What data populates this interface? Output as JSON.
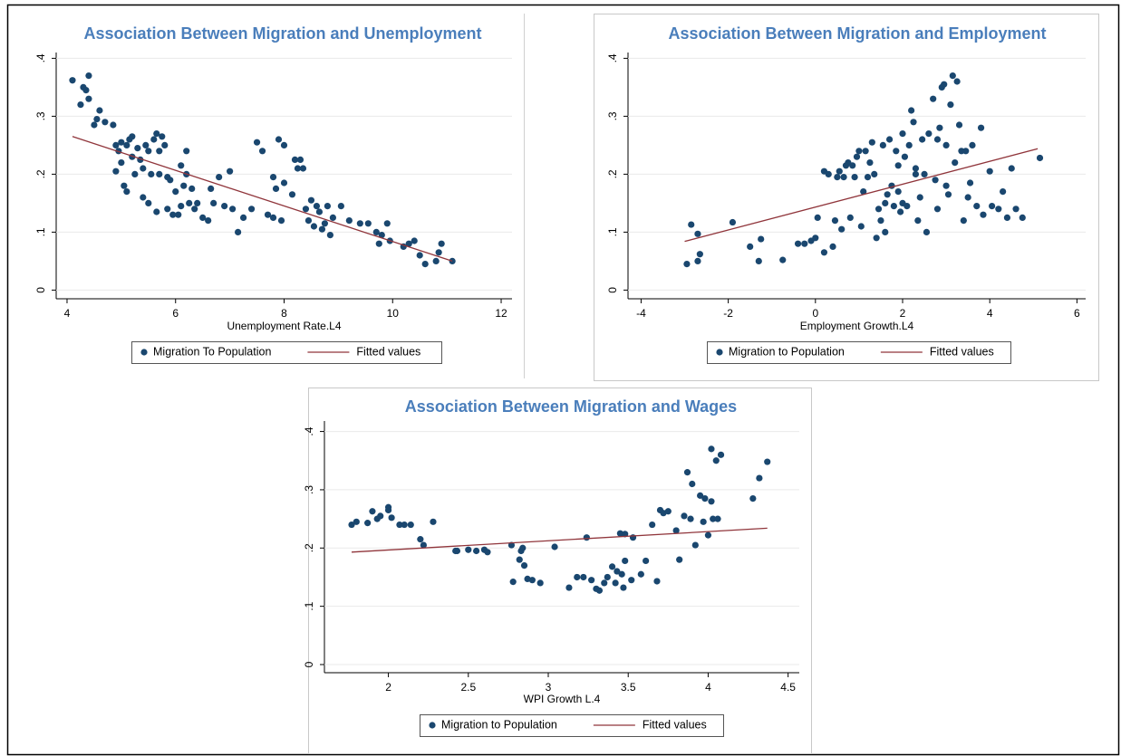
{
  "chart_data": [
    {
      "type": "scatter",
      "title": "Association Between Migration and Unemployment",
      "x_label": "Unemployment Rate.L4",
      "xlim": [
        3.8,
        12.2
      ],
      "ylim": [
        -0.015,
        0.41
      ],
      "xticks": [
        4,
        6,
        8,
        10,
        12
      ],
      "yticks": [
        0,
        {
          "value": 0.1,
          "label": ".1"
        },
        {
          "value": 0.2,
          "label": ".2"
        },
        {
          "value": 0.3,
          "label": ".3"
        },
        {
          "value": 0.4,
          "label": ".4"
        }
      ],
      "grid": true,
      "series": [
        {
          "name": "Migration To Population",
          "mode": "markers",
          "color": "#1a476f",
          "x": [
            4.1,
            4.25,
            4.3,
            4.35,
            4.4,
            4.4,
            4.5,
            4.55,
            4.6,
            4.7,
            4.85,
            4.9,
            4.9,
            4.95,
            5.0,
            5.0,
            5.05,
            5.1,
            5.1,
            5.15,
            5.2,
            5.2,
            5.25,
            5.3,
            5.35,
            5.4,
            5.4,
            5.45,
            5.5,
            5.5,
            5.55,
            5.6,
            5.65,
            5.65,
            5.7,
            5.7,
            5.75,
            5.8,
            5.85,
            5.85,
            5.9,
            5.95,
            6.0,
            6.05,
            6.1,
            6.1,
            6.15,
            6.2,
            6.2,
            6.25,
            6.3,
            6.35,
            6.4,
            6.5,
            6.6,
            6.65,
            6.7,
            6.8,
            6.9,
            7.0,
            7.05,
            7.15,
            7.25,
            7.4,
            7.5,
            7.6,
            7.7,
            7.8,
            7.8,
            7.85,
            7.9,
            7.95,
            8.0,
            8.0,
            8.15,
            8.2,
            8.25,
            8.3,
            8.35,
            8.4,
            8.45,
            8.5,
            8.55,
            8.6,
            8.65,
            8.7,
            8.75,
            8.8,
            8.85,
            8.9,
            9.05,
            9.2,
            9.4,
            9.55,
            9.7,
            9.75,
            9.8,
            9.9,
            9.95,
            10.2,
            10.3,
            10.4,
            10.5,
            10.6,
            10.8,
            10.85,
            10.9,
            11.1
          ],
          "values": [
            0.362,
            0.32,
            0.35,
            0.345,
            0.37,
            0.33,
            0.285,
            0.295,
            0.31,
            0.29,
            0.285,
            0.25,
            0.205,
            0.24,
            0.22,
            0.255,
            0.18,
            0.17,
            0.25,
            0.26,
            0.265,
            0.23,
            0.2,
            0.245,
            0.225,
            0.21,
            0.16,
            0.25,
            0.24,
            0.15,
            0.2,
            0.26,
            0.27,
            0.135,
            0.2,
            0.24,
            0.265,
            0.25,
            0.195,
            0.14,
            0.19,
            0.13,
            0.17,
            0.13,
            0.215,
            0.145,
            0.18,
            0.24,
            0.2,
            0.15,
            0.175,
            0.14,
            0.15,
            0.125,
            0.12,
            0.175,
            0.15,
            0.195,
            0.145,
            0.205,
            0.14,
            0.1,
            0.125,
            0.14,
            0.255,
            0.24,
            0.13,
            0.195,
            0.125,
            0.175,
            0.26,
            0.12,
            0.25,
            0.185,
            0.165,
            0.225,
            0.21,
            0.225,
            0.21,
            0.14,
            0.12,
            0.155,
            0.11,
            0.145,
            0.135,
            0.105,
            0.115,
            0.145,
            0.095,
            0.125,
            0.145,
            0.12,
            0.115,
            0.115,
            0.1,
            0.08,
            0.095,
            0.115,
            0.085,
            0.075,
            0.08,
            0.085,
            0.06,
            0.045,
            0.05,
            0.065,
            0.08,
            0.05
          ]
        },
        {
          "name": "Fitted values",
          "mode": "line",
          "color": "#90353b",
          "x": [
            4.1,
            11.1
          ],
          "values": [
            0.265,
            0.05
          ]
        }
      ]
    },
    {
      "type": "scatter",
      "title": "Association Between Migration and Employment",
      "x_label": "Employment Growth.L4",
      "xlim": [
        -4.3,
        6.2
      ],
      "ylim": [
        -0.015,
        0.41
      ],
      "xticks": [
        -4,
        -2,
        0,
        2,
        4,
        6
      ],
      "yticks": [
        0,
        {
          "value": 0.1,
          "label": ".1"
        },
        {
          "value": 0.2,
          "label": ".2"
        },
        {
          "value": 0.3,
          "label": ".3"
        },
        {
          "value": 0.4,
          "label": ".4"
        }
      ],
      "grid": true,
      "series": [
        {
          "name": "Migration to Population",
          "mode": "markers",
          "color": "#1a476f",
          "x": [
            -2.95,
            -2.85,
            -2.7,
            -2.7,
            -2.65,
            -1.9,
            -1.5,
            -1.25,
            -1.3,
            -0.75,
            -0.4,
            -0.25,
            -0.1,
            0.0,
            0.05,
            0.2,
            0.2,
            0.3,
            0.4,
            0.45,
            0.5,
            0.55,
            0.6,
            0.65,
            0.7,
            0.8,
            0.85,
            0.9,
            0.95,
            1.0,
            1.05,
            1.1,
            1.15,
            1.2,
            1.3,
            1.35,
            1.4,
            1.45,
            1.5,
            1.55,
            1.6,
            1.65,
            1.7,
            1.75,
            1.8,
            1.85,
            1.9,
            1.95,
            2.0,
            2.05,
            2.1,
            2.15,
            2.2,
            2.25,
            2.3,
            2.35,
            2.4,
            2.45,
            2.5,
            2.55,
            2.6,
            2.7,
            2.75,
            2.8,
            2.85,
            2.9,
            2.95,
            3.0,
            3.05,
            3.1,
            3.15,
            3.2,
            3.25,
            3.3,
            3.35,
            3.4,
            3.5,
            3.55,
            3.6,
            3.7,
            3.8,
            3.85,
            4.0,
            4.05,
            4.2,
            4.3,
            4.4,
            4.5,
            4.6,
            4.75,
            5.15,
            0.75,
            1.25,
            2.0,
            2.3,
            2.8,
            3.0,
            3.45,
            1.6,
            1.9
          ],
          "values": [
            0.045,
            0.113,
            0.097,
            0.05,
            0.062,
            0.117,
            0.075,
            0.088,
            0.05,
            0.052,
            0.08,
            0.08,
            0.085,
            0.09,
            0.125,
            0.065,
            0.205,
            0.2,
            0.075,
            0.12,
            0.195,
            0.205,
            0.105,
            0.195,
            0.215,
            0.125,
            0.215,
            0.195,
            0.23,
            0.24,
            0.11,
            0.17,
            0.24,
            0.195,
            0.255,
            0.2,
            0.09,
            0.14,
            0.12,
            0.25,
            0.1,
            0.165,
            0.26,
            0.18,
            0.145,
            0.24,
            0.17,
            0.135,
            0.27,
            0.23,
            0.145,
            0.25,
            0.31,
            0.29,
            0.21,
            0.12,
            0.16,
            0.26,
            0.2,
            0.1,
            0.27,
            0.33,
            0.19,
            0.26,
            0.28,
            0.35,
            0.355,
            0.25,
            0.165,
            0.32,
            0.37,
            0.22,
            0.36,
            0.285,
            0.24,
            0.12,
            0.16,
            0.185,
            0.25,
            0.145,
            0.28,
            0.13,
            0.205,
            0.145,
            0.14,
            0.17,
            0.125,
            0.21,
            0.14,
            0.125,
            0.228,
            0.22,
            0.22,
            0.15,
            0.2,
            0.14,
            0.18,
            0.24,
            0.15,
            0.215
          ]
        },
        {
          "name": "Fitted values",
          "mode": "line",
          "color": "#90353b",
          "x": [
            -3.0,
            5.1
          ],
          "values": [
            0.084,
            0.244
          ]
        }
      ]
    },
    {
      "type": "scatter",
      "title": "Association Between Migration and Wages",
      "x_label": "WPI Growth L.4",
      "xlim": [
        1.6,
        4.57
      ],
      "ylim": [
        -0.014,
        0.418
      ],
      "xticks": [
        2,
        2.5,
        3,
        3.5,
        4,
        4.5
      ],
      "yticks": [
        0,
        {
          "value": 0.1,
          "label": ".1"
        },
        {
          "value": 0.2,
          "label": ".2"
        },
        {
          "value": 0.3,
          "label": ".3"
        },
        {
          "value": 0.4,
          "label": ".4"
        }
      ],
      "grid": true,
      "series": [
        {
          "name": "Migration to Population",
          "mode": "markers",
          "color": "#1a476f",
          "x": [
            1.77,
            1.8,
            1.87,
            1.9,
            1.93,
            1.95,
            2.0,
            2.0,
            2.02,
            2.07,
            2.1,
            2.14,
            2.2,
            2.22,
            2.28,
            2.42,
            2.43,
            2.5,
            2.55,
            2.6,
            2.62,
            2.77,
            2.78,
            2.82,
            2.83,
            2.84,
            2.85,
            2.87,
            2.9,
            2.95,
            3.04,
            3.13,
            3.18,
            3.22,
            3.24,
            3.27,
            3.3,
            3.32,
            3.35,
            3.37,
            3.4,
            3.42,
            3.43,
            3.45,
            3.46,
            3.48,
            3.47,
            3.48,
            3.52,
            3.53,
            3.58,
            3.61,
            3.65,
            3.68,
            3.7,
            3.72,
            3.75,
            3.8,
            3.82,
            3.85,
            3.87,
            3.89,
            3.9,
            3.92,
            3.95,
            3.97,
            3.98,
            4.0,
            4.02,
            4.02,
            4.03,
            4.05,
            4.06,
            4.08,
            4.28,
            4.32,
            4.37
          ],
          "values": [
            0.24,
            0.245,
            0.243,
            0.263,
            0.25,
            0.255,
            0.27,
            0.265,
            0.252,
            0.24,
            0.24,
            0.24,
            0.215,
            0.205,
            0.245,
            0.195,
            0.195,
            0.197,
            0.195,
            0.197,
            0.193,
            0.205,
            0.142,
            0.18,
            0.195,
            0.2,
            0.17,
            0.147,
            0.145,
            0.14,
            0.202,
            0.132,
            0.15,
            0.15,
            0.218,
            0.145,
            0.13,
            0.127,
            0.14,
            0.15,
            0.168,
            0.14,
            0.16,
            0.225,
            0.155,
            0.178,
            0.132,
            0.224,
            0.145,
            0.218,
            0.155,
            0.178,
            0.24,
            0.143,
            0.265,
            0.26,
            0.263,
            0.23,
            0.18,
            0.255,
            0.33,
            0.25,
            0.31,
            0.205,
            0.29,
            0.245,
            0.285,
            0.222,
            0.28,
            0.37,
            0.25,
            0.35,
            0.25,
            0.36,
            0.285,
            0.32,
            0.348
          ]
        },
        {
          "name": "Fitted values",
          "mode": "line",
          "color": "#90353b",
          "x": [
            1.77,
            4.37
          ],
          "values": [
            0.193,
            0.234
          ]
        }
      ]
    }
  ]
}
